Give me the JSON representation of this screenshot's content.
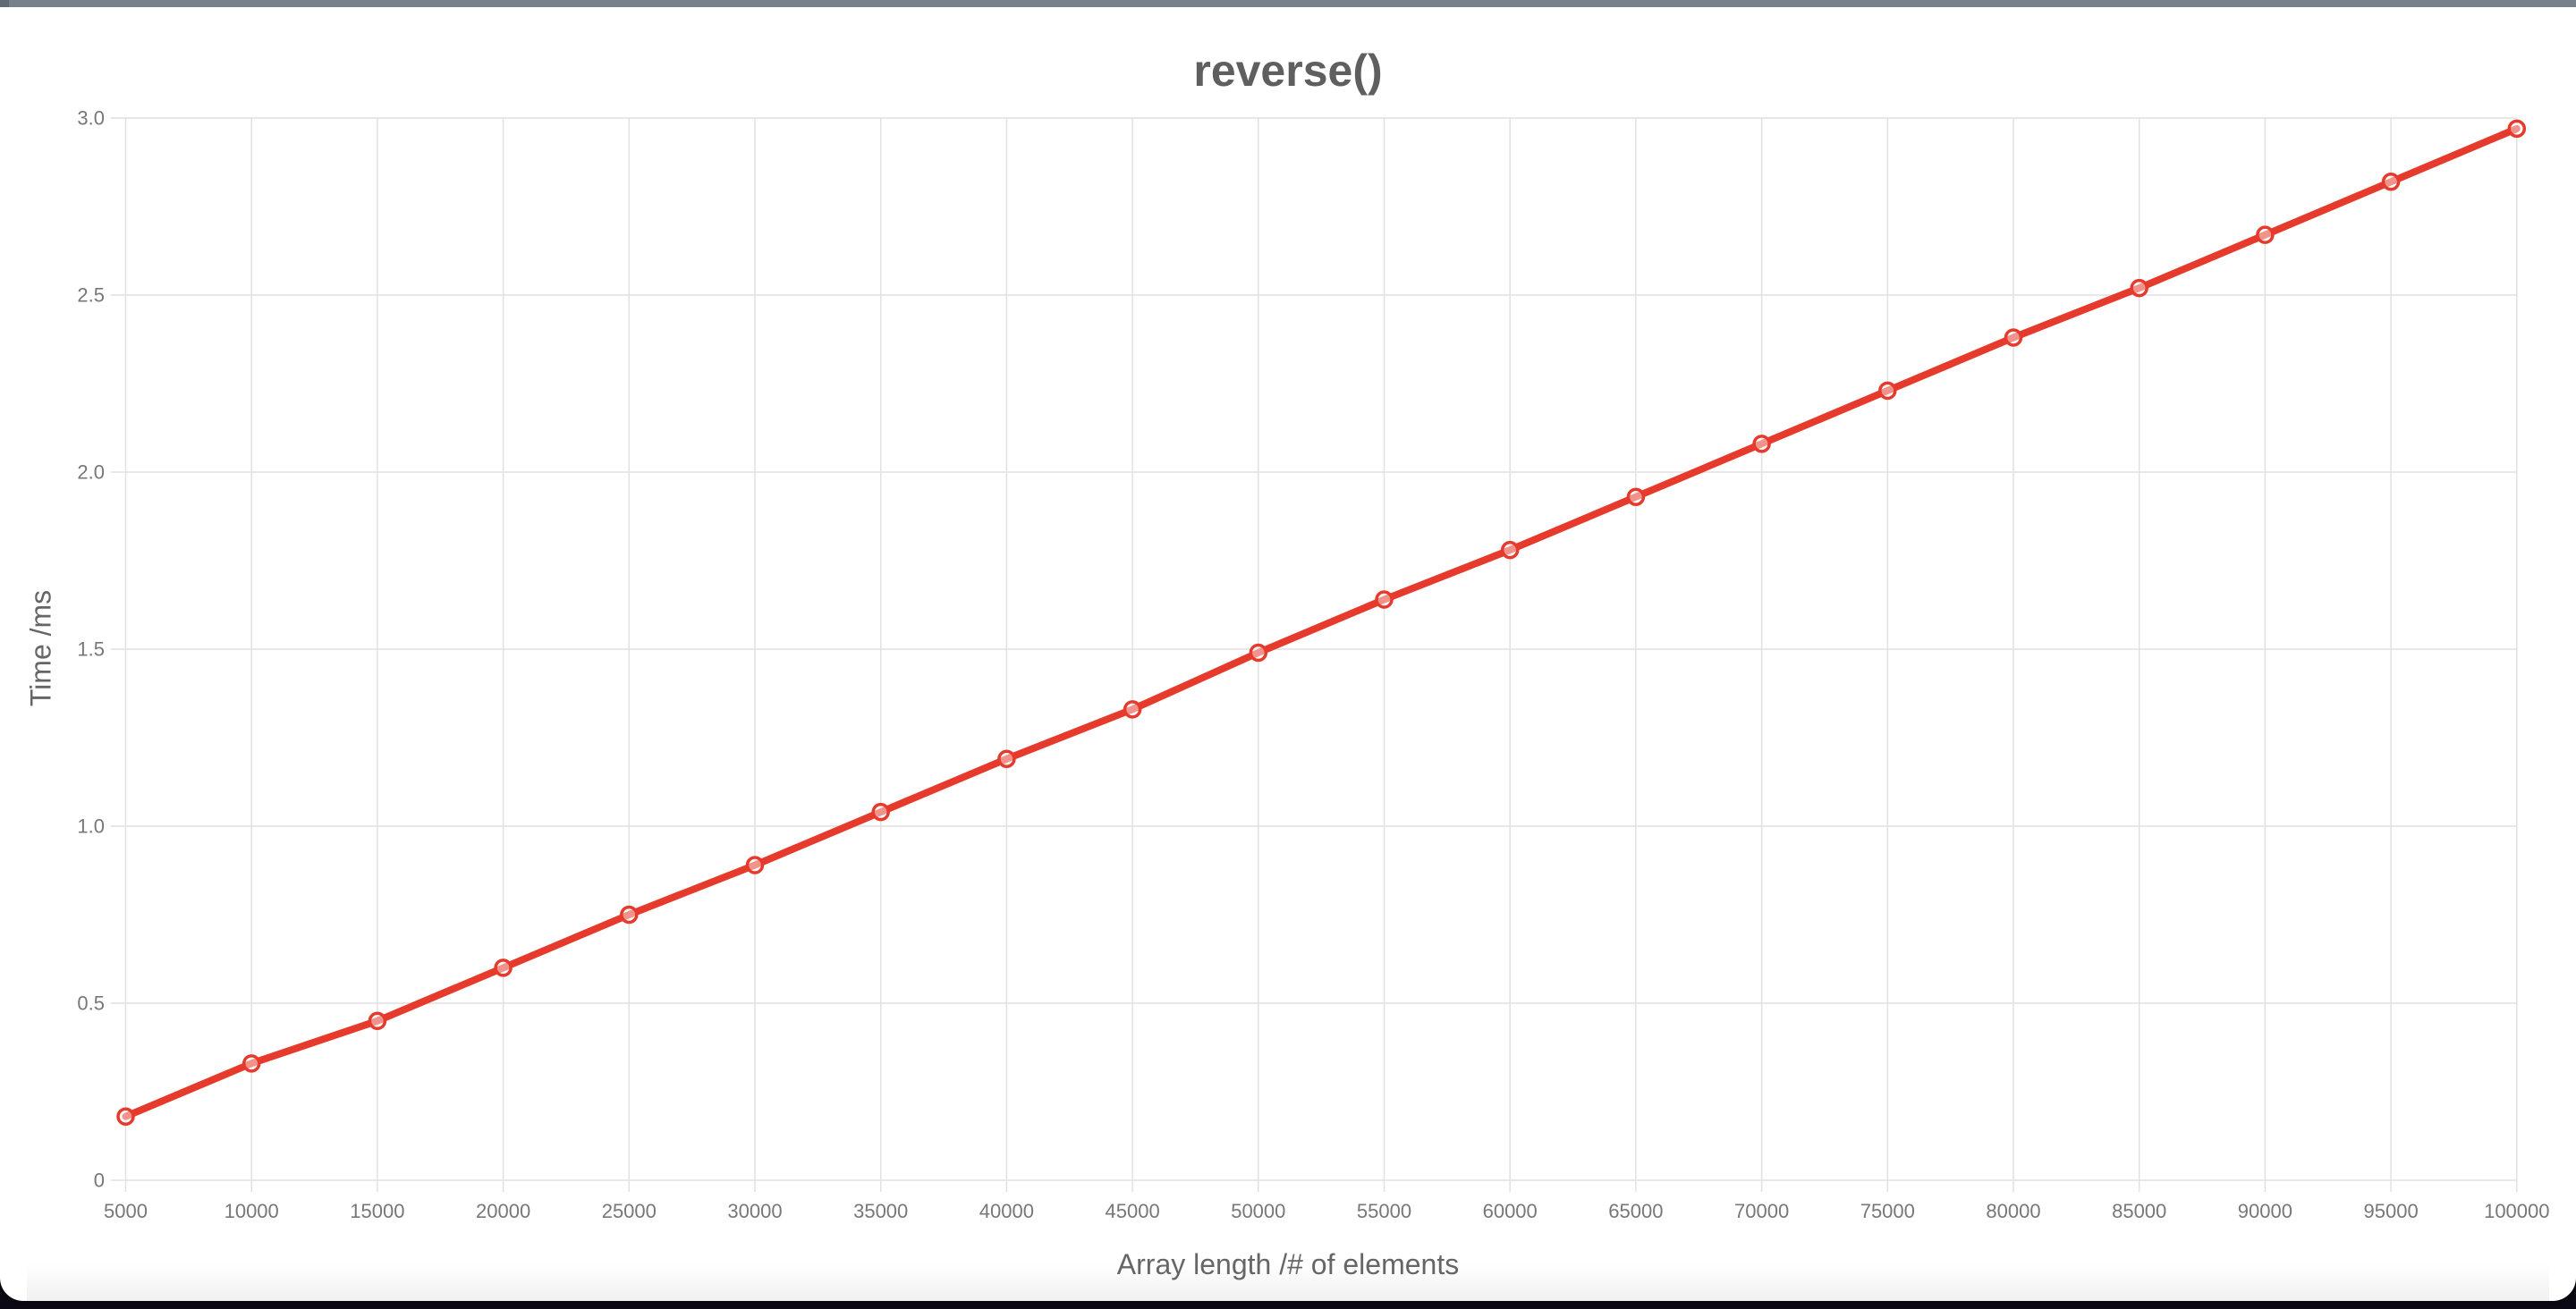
{
  "window": {
    "top_bar_color": "#76818b",
    "top_bar_left_color": "#5f6a72",
    "background_color": "#0c0916",
    "card_color": "#ffffff"
  },
  "chart_data": {
    "type": "line",
    "title": "reverse()",
    "xlabel": "Array length /# of elements",
    "ylabel": "Time /ms",
    "categories": [
      5000,
      10000,
      15000,
      20000,
      25000,
      30000,
      35000,
      40000,
      45000,
      50000,
      55000,
      60000,
      65000,
      70000,
      75000,
      80000,
      85000,
      90000,
      95000,
      100000
    ],
    "series": [
      {
        "name": "reverse()",
        "color": "#e63b2c",
        "marker": "open-circle",
        "values": [
          0.18,
          0.33,
          0.45,
          0.6,
          0.75,
          0.89,
          1.04,
          1.19,
          1.33,
          1.49,
          1.64,
          1.78,
          1.93,
          2.08,
          2.23,
          2.38,
          2.52,
          2.67,
          2.82,
          2.97
        ]
      }
    ],
    "ylim": [
      0,
      3.0
    ],
    "ytick_step": 0.5,
    "ytick_labels": [
      "0",
      "0.5",
      "1.0",
      "1.5",
      "2.0",
      "2.5",
      "3.0"
    ],
    "grid": true,
    "legend_position": "none",
    "gridline_color": "#e1e1e1",
    "tick_label_color": "#777777",
    "title_color": "#5f5f5f",
    "axis_title_color": "#666666"
  }
}
